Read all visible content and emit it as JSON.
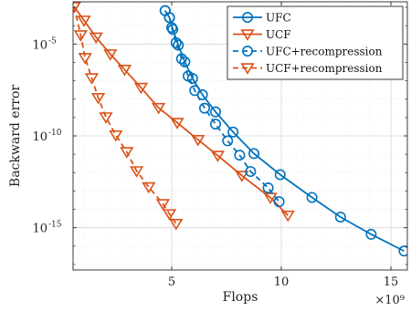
{
  "chart_data": {
    "type": "line",
    "title": "",
    "xlabel": "Flops",
    "ylabel": "Backward error",
    "x_multiplier_label": "×10⁹",
    "xlim": [
      0.5,
      15.75
    ],
    "ylim_log10": [
      -17.3,
      -2.7
    ],
    "yscale": "log",
    "xticks": [
      5,
      10,
      15
    ],
    "xtick_labels": [
      "5",
      "10",
      "15"
    ],
    "yticks_log10": [
      -5,
      -10,
      -15
    ],
    "ytick_labels": [
      "10",
      "10",
      "10"
    ],
    "ytick_exponents": [
      "-5",
      "-10",
      "-15"
    ],
    "grid": true,
    "legend_position": "top-right",
    "series": [
      {
        "name": "UFC",
        "color": "#0072BD",
        "line_style": "solid",
        "marker": "circle",
        "points": [
          [
            4.7,
            -3.18
          ],
          [
            4.9,
            -3.56
          ],
          [
            5.05,
            -4.2
          ],
          [
            5.3,
            -5.06
          ],
          [
            5.6,
            -5.97
          ],
          [
            5.95,
            -6.87
          ],
          [
            6.4,
            -7.76
          ],
          [
            7.0,
            -8.69
          ],
          [
            7.8,
            -9.79
          ],
          [
            8.75,
            -10.96
          ],
          [
            9.95,
            -12.11
          ],
          [
            11.4,
            -13.35
          ],
          [
            12.7,
            -14.42
          ],
          [
            14.1,
            -15.36
          ],
          [
            15.6,
            -16.27
          ]
        ]
      },
      {
        "name": "UCF",
        "color": "#D95319",
        "line_style": "solid",
        "marker": "triangle-down",
        "points": [
          [
            0.55,
            -2.96
          ],
          [
            1.0,
            -3.71
          ],
          [
            1.55,
            -4.63
          ],
          [
            2.2,
            -5.55
          ],
          [
            2.85,
            -6.39
          ],
          [
            3.6,
            -7.37
          ],
          [
            4.4,
            -8.47
          ],
          [
            5.25,
            -9.28
          ],
          [
            6.2,
            -10.21
          ],
          [
            7.1,
            -11.07
          ],
          [
            8.2,
            -12.16
          ],
          [
            9.5,
            -13.36
          ],
          [
            10.3,
            -14.33
          ]
        ]
      },
      {
        "name": "UFC+recompression",
        "color": "#0072BD",
        "line_style": "dashed",
        "marker": "circle",
        "points": [
          [
            4.7,
            -3.18
          ],
          [
            4.9,
            -3.56
          ],
          [
            5.0,
            -4.1
          ],
          [
            5.2,
            -4.93
          ],
          [
            5.45,
            -5.8
          ],
          [
            5.75,
            -6.74
          ],
          [
            6.05,
            -7.53
          ],
          [
            6.5,
            -8.49
          ],
          [
            7.0,
            -9.36
          ],
          [
            7.55,
            -10.27
          ],
          [
            8.1,
            -11.05
          ],
          [
            8.6,
            -11.94
          ],
          [
            9.4,
            -12.83
          ],
          [
            9.9,
            -13.58
          ]
        ]
      },
      {
        "name": "UCF+recompression",
        "color": "#D95319",
        "line_style": "dashed",
        "marker": "triangle-down",
        "points": [
          [
            0.55,
            -2.96
          ],
          [
            0.85,
            -4.51
          ],
          [
            1.05,
            -5.75
          ],
          [
            1.35,
            -6.85
          ],
          [
            1.65,
            -7.93
          ],
          [
            2.0,
            -8.98
          ],
          [
            2.45,
            -9.96
          ],
          [
            2.95,
            -10.87
          ],
          [
            3.4,
            -11.91
          ],
          [
            3.95,
            -12.78
          ],
          [
            4.6,
            -13.7
          ],
          [
            4.9,
            -14.25
          ],
          [
            5.2,
            -14.78
          ]
        ]
      }
    ]
  }
}
